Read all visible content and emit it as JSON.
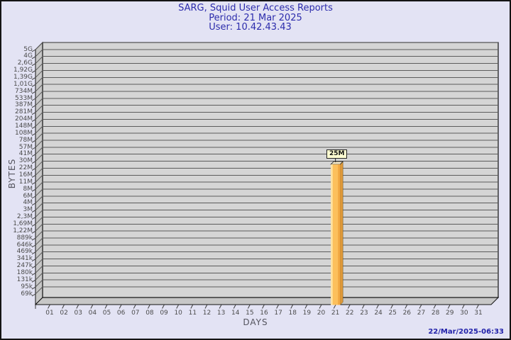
{
  "header": {
    "title": "SARG, Squid User Access Reports",
    "period_line": "Period: 21 Mar 2025",
    "user_line": "User: 10.42.43.43"
  },
  "footer": {
    "generated_at": "22/Mar/2025-06:33"
  },
  "chart_data": {
    "type": "bar",
    "title": "SARG, Squid User Access Reports",
    "xlabel": "DAYS",
    "ylabel": "BYTES",
    "y_scale": "log",
    "y_range_labels": [
      "69k",
      "5G"
    ],
    "grid": true,
    "y_tick_labels": [
      "5G",
      "4G",
      "2,6G",
      "1,92G",
      "1,39G",
      "1,01G",
      "734M",
      "533M",
      "387M",
      "281M",
      "204M",
      "148M",
      "108M",
      "78M",
      "57M",
      "41M",
      "30M",
      "22M",
      "16M",
      "11M",
      "8M",
      "6M",
      "4M",
      "3M",
      "2,3M",
      "1,69M",
      "1,22M",
      "889k",
      "646k",
      "469k",
      "341k",
      "247k",
      "180k",
      "131k",
      "95k",
      "69k"
    ],
    "x_tick_labels": [
      "01",
      "02",
      "03",
      "04",
      "05",
      "06",
      "07",
      "08",
      "09",
      "10",
      "11",
      "12",
      "13",
      "14",
      "15",
      "16",
      "17",
      "18",
      "19",
      "20",
      "21",
      "22",
      "23",
      "24",
      "25",
      "26",
      "27",
      "28",
      "29",
      "30",
      "31"
    ],
    "bars": [
      {
        "x": "21",
        "label": "25M",
        "value_bytes": 26214400
      }
    ],
    "colors": {
      "plot_face": "#D5D5D5",
      "plot_wall": "#C7C7C7",
      "grid_line": "#5C5C5C",
      "edge": "#101010",
      "tick": "#3C3C3C",
      "bar_main": "#FCC express05C",
      "bar_face": "#FCC05C",
      "bar_light": "#FFE4A6",
      "bar_dark": "#F2A843",
      "bar_side": "#DE9838",
      "bar_top": "#F8EBC8",
      "annotation_bg": "#FFFFD2",
      "title_color": "#2C2CAC",
      "timestamp_color": "#2222AA",
      "axis_text": "#4B4B4B"
    }
  }
}
